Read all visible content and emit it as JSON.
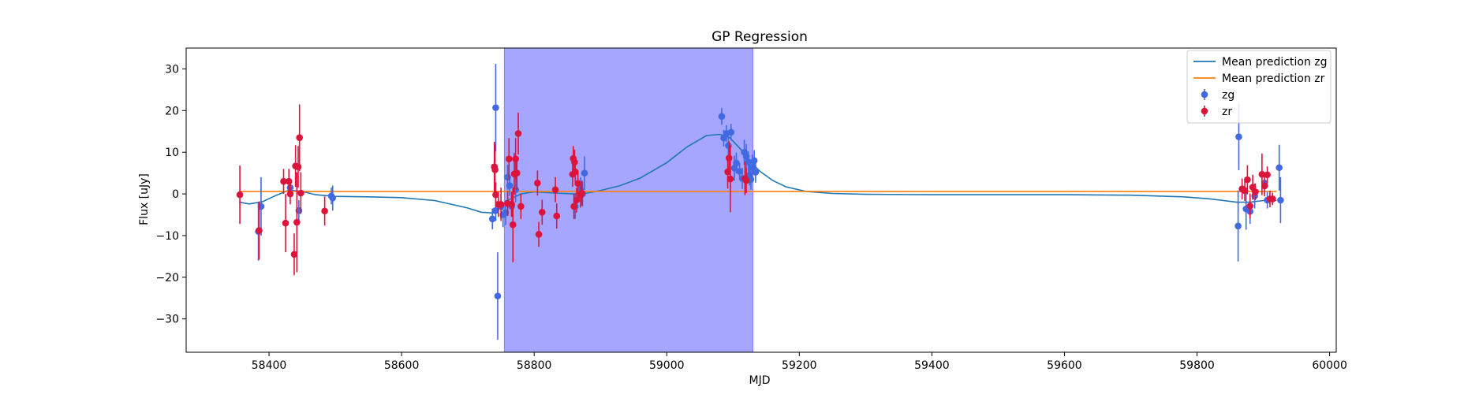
{
  "chart_data": {
    "type": "scatter",
    "title": "GP Regression",
    "xlabel": "MJD",
    "ylabel": "Flux [uJy]",
    "xlim": [
      58275,
      60010
    ],
    "ylim": [
      -38,
      35
    ],
    "xticks": [
      58400,
      58600,
      58800,
      59000,
      59200,
      59400,
      59600,
      59800,
      60000
    ],
    "yticks": [
      -30,
      -20,
      -10,
      0,
      10,
      20,
      30
    ],
    "grid": false,
    "legend_position": "top-right",
    "shaded_region": {
      "x_start": 58755,
      "x_end": 59130,
      "color": "#a6a6ff"
    },
    "colors": {
      "zg_points": "#4169e1",
      "zr_points": "#dc143c",
      "mean_zg": "#1f77b4",
      "mean_zr": "#ff7f0e"
    },
    "series": [
      {
        "name": "Mean prediction zg",
        "kind": "line",
        "color": "#1f77b4",
        "x": [
          58355,
          58370,
          58390,
          58410,
          58430,
          58450,
          58470,
          58500,
          58550,
          58600,
          58650,
          58700,
          58720,
          58740,
          58760,
          58780,
          58800,
          58830,
          58860,
          58880,
          58900,
          58930,
          58960,
          59000,
          59030,
          59060,
          59080,
          59095,
          59110,
          59125,
          59140,
          59160,
          59180,
          59210,
          59250,
          59300,
          59400,
          59500,
          59600,
          59700,
          59780,
          59820,
          59860,
          59880,
          59900,
          59920
        ],
        "y": [
          -2,
          -2.4,
          -1.9,
          -0.4,
          0.9,
          0.6,
          -0.2,
          -0.6,
          -0.7,
          -0.9,
          -1.6,
          -3.4,
          -4.4,
          -4.6,
          -1.5,
          0.0,
          0.5,
          0.2,
          0.0,
          0.2,
          0.8,
          2.0,
          3.8,
          7.5,
          11.2,
          14.0,
          14.3,
          13.5,
          11.0,
          8.0,
          5.5,
          3.2,
          1.7,
          0.6,
          0.1,
          -0.1,
          -0.2,
          -0.2,
          -0.2,
          -0.3,
          -0.7,
          -1.2,
          -2.0,
          -2.0,
          -1.6,
          -1.6
        ]
      },
      {
        "name": "Mean prediction zr",
        "kind": "line",
        "color": "#ff7f0e",
        "x": [
          58355,
          59920
        ],
        "y": [
          0.6,
          0.6
        ]
      },
      {
        "name": "zg",
        "kind": "errorbar",
        "color": "#4169e1",
        "x": [
          58384,
          58388,
          58432,
          58445,
          58496,
          58494,
          58737,
          58742,
          58742,
          58745,
          58750,
          58753,
          58757,
          58760,
          58763,
          58766,
          58772,
          58862,
          58870,
          58873,
          58876,
          59083,
          59086,
          59090,
          59093,
          59097,
          59102,
          59105,
          59110,
          59114,
          59117,
          59120,
          59123,
          59125,
          59127,
          59129,
          59132,
          59134,
          59862,
          59863,
          59874,
          59880,
          59887,
          59902,
          59906,
          59924,
          59926
        ],
        "y": [
          -9,
          -3,
          1.5,
          -4,
          -1,
          -0.5,
          -6,
          -4,
          20.7,
          -24.5,
          -3,
          -5,
          -4.5,
          4,
          2,
          -3,
          1,
          -3,
          1,
          0,
          5,
          18.6,
          13.4,
          14.5,
          11.6,
          14.8,
          6.2,
          7.4,
          5.4,
          3.7,
          10,
          9,
          7.7,
          4.5,
          3.5,
          6.4,
          8,
          5.2,
          -7.7,
          13.7,
          -3.6,
          -4.2,
          -0.5,
          2.6,
          -1.5,
          6.3,
          -1.5
        ],
        "err": [
          7,
          7,
          1.5,
          2.5,
          3,
          2,
          2.5,
          2.5,
          10.5,
          10.5,
          3,
          3,
          3,
          3,
          2.5,
          2.5,
          3,
          3,
          3,
          3,
          4,
          2,
          2,
          2,
          3,
          2,
          3,
          2.5,
          2,
          2.5,
          3,
          3,
          2.5,
          2.5,
          2.5,
          3,
          2.5,
          2.5,
          8.5,
          8,
          5,
          3,
          3,
          2.5,
          2,
          5.5,
          5.5
        ]
      },
      {
        "name": "zr",
        "kind": "errorbar",
        "color": "#dc143c",
        "x": [
          58356,
          58385,
          58422,
          58425,
          58430,
          58432,
          58438,
          58440,
          58442,
          58444,
          58446,
          58448,
          58484,
          58740,
          58741,
          58742,
          58746,
          58750,
          58760,
          58762,
          58766,
          58768,
          58770,
          58772,
          58774,
          58776,
          58780,
          58805,
          58807,
          58812,
          58832,
          58834,
          58858,
          58859,
          58860,
          58861,
          58862,
          58864,
          58866,
          58870,
          58872,
          59092,
          59094,
          59096,
          59118,
          59120,
          59868,
          59872,
          59876,
          59880,
          59884,
          59888,
          59898,
          59902,
          59906,
          59910,
          59914
        ],
        "y": [
          -0.2,
          -8.8,
          3,
          -7,
          3,
          0,
          -14.5,
          6.7,
          -6.8,
          6.5,
          13.5,
          0.2,
          -4.1,
          6.5,
          5.8,
          -0.2,
          -2.5,
          -2.5,
          -2.3,
          8.4,
          -2.5,
          -7.4,
          4.8,
          8.4,
          5,
          14.5,
          -3,
          2.6,
          -9.7,
          -4.4,
          1,
          -5.3,
          4.7,
          8.5,
          -3,
          7.6,
          5.3,
          -1.5,
          2.5,
          -0.3,
          0.2,
          5.3,
          8.6,
          3.6,
          3.7,
          3.2,
          1.2,
          0.8,
          3.4,
          -2.9,
          1.6,
          0.5,
          4.7,
          1.9,
          4.6,
          -1.2,
          -1.2
        ],
        "err": [
          7,
          7,
          3,
          7,
          3,
          2.5,
          5,
          5,
          12,
          5,
          8,
          5,
          3.5,
          6,
          6,
          3,
          3,
          4,
          3,
          5,
          3,
          9,
          5,
          5,
          4,
          5,
          3,
          3,
          3,
          3,
          3,
          3,
          3,
          3,
          3,
          3,
          3,
          3,
          3,
          3,
          3,
          4,
          4,
          8,
          4,
          3,
          2.5,
          2.5,
          3.5,
          3,
          3,
          2,
          5,
          2.5,
          2,
          2,
          1.5
        ]
      }
    ],
    "legend": [
      {
        "label": "Mean prediction zg",
        "kind": "line",
        "color": "#1f77b4"
      },
      {
        "label": "Mean prediction zr",
        "kind": "line",
        "color": "#ff7f0e"
      },
      {
        "label": "zg",
        "kind": "errorbar",
        "color": "#4169e1"
      },
      {
        "label": "zr",
        "kind": "errorbar",
        "color": "#dc143c"
      }
    ]
  }
}
